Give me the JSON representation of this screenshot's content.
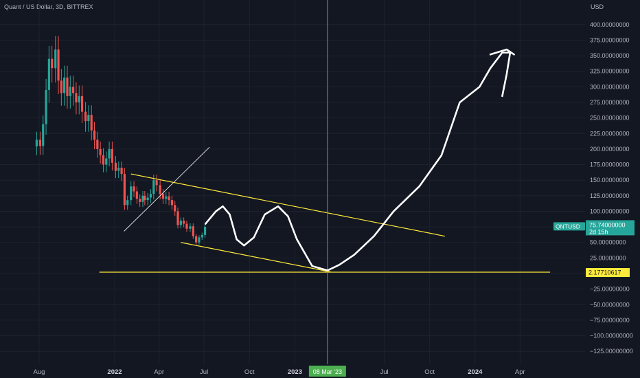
{
  "header": {
    "title": "Quant / US Dollar, 3D, BITTREX"
  },
  "axis": {
    "currency": "USD"
  },
  "price_label": {
    "symbol": "QNTUSD",
    "price": "75.74000000",
    "countdown": "2d 15h",
    "color": "#26a69a"
  },
  "level_label": {
    "value": "2.17710617",
    "color": "#ffeb3b"
  },
  "crosshair_label": {
    "text": "08 Mar '23",
    "color": "#4caf50"
  },
  "colors": {
    "up": "#26a69a",
    "down": "#ef5350",
    "trendline": "#ffeb3b",
    "drawing": "#ffffff",
    "crosshair": "#4caf50"
  },
  "chart_data": {
    "type": "candlestick",
    "symbol": "QNTUSD",
    "interval": "3D",
    "y_ticks": [
      "400.00000000",
      "375.00000000",
      "350.00000000",
      "325.00000000",
      "300.00000000",
      "275.00000000",
      "250.00000000",
      "225.00000000",
      "200.00000000",
      "175.00000000",
      "150.00000000",
      "125.00000000",
      "100.00000000",
      "75.00000000",
      "50.00000000",
      "25.00000000",
      "0.00000000",
      "−25.00000000",
      "−50.00000000",
      "−75.00000000",
      "−100.00000000",
      "−125.00000000"
    ],
    "y_tick_values": [
      400,
      375,
      350,
      325,
      300,
      275,
      250,
      225,
      200,
      175,
      150,
      125,
      100,
      75,
      50,
      25,
      0,
      -25,
      -50,
      -75,
      -100,
      -125
    ],
    "x_ticks": [
      {
        "label": "Aug",
        "date": "2021-08-01",
        "bold": false
      },
      {
        "label": "2022",
        "date": "2022-01-01",
        "bold": true
      },
      {
        "label": "Apr",
        "date": "2022-04-01",
        "bold": false
      },
      {
        "label": "Jul",
        "date": "2022-07-01",
        "bold": false
      },
      {
        "label": "Oct",
        "date": "2022-10-01",
        "bold": false
      },
      {
        "label": "2023",
        "date": "2023-01-01",
        "bold": true
      },
      {
        "label": "Jul",
        "date": "2023-07-01",
        "bold": false
      },
      {
        "label": "Oct",
        "date": "2023-10-01",
        "bold": false
      },
      {
        "label": "2024",
        "date": "2024-01-01",
        "bold": true
      },
      {
        "label": "Apr",
        "date": "2024-04-01",
        "bold": false
      }
    ],
    "candles_close": [
      {
        "date": "2021-07-27",
        "close": 215
      },
      {
        "date": "2021-08-03",
        "close": 205
      },
      {
        "date": "2021-08-09",
        "close": 240
      },
      {
        "date": "2021-08-15",
        "close": 295
      },
      {
        "date": "2021-08-21",
        "close": 345
      },
      {
        "date": "2021-08-27",
        "close": 330
      },
      {
        "date": "2021-09-03",
        "close": 360
      },
      {
        "date": "2021-09-09",
        "close": 310
      },
      {
        "date": "2021-09-15",
        "close": 290
      },
      {
        "date": "2021-09-21",
        "close": 315
      },
      {
        "date": "2021-09-27",
        "close": 285
      },
      {
        "date": "2021-10-03",
        "close": 300
      },
      {
        "date": "2021-10-09",
        "close": 290
      },
      {
        "date": "2021-10-15",
        "close": 275
      },
      {
        "date": "2021-10-21",
        "close": 285
      },
      {
        "date": "2021-10-27",
        "close": 260
      },
      {
        "date": "2021-11-03",
        "close": 245
      },
      {
        "date": "2021-11-09",
        "close": 255
      },
      {
        "date": "2021-11-15",
        "close": 230
      },
      {
        "date": "2021-11-21",
        "close": 215
      },
      {
        "date": "2021-11-27",
        "close": 200
      },
      {
        "date": "2021-12-03",
        "close": 190
      },
      {
        "date": "2021-12-09",
        "close": 175
      },
      {
        "date": "2021-12-15",
        "close": 185
      },
      {
        "date": "2021-12-21",
        "close": 200
      },
      {
        "date": "2021-12-27",
        "close": 178
      },
      {
        "date": "2022-01-03",
        "close": 165
      },
      {
        "date": "2022-01-09",
        "close": 170
      },
      {
        "date": "2022-01-15",
        "close": 160
      },
      {
        "date": "2022-01-21",
        "close": 110
      },
      {
        "date": "2022-01-27",
        "close": 118
      },
      {
        "date": "2022-02-03",
        "close": 140
      },
      {
        "date": "2022-02-09",
        "close": 132
      },
      {
        "date": "2022-02-15",
        "close": 120
      },
      {
        "date": "2022-02-21",
        "close": 115
      },
      {
        "date": "2022-02-27",
        "close": 125
      },
      {
        "date": "2022-03-03",
        "close": 118
      },
      {
        "date": "2022-03-09",
        "close": 122
      },
      {
        "date": "2022-03-15",
        "close": 128
      },
      {
        "date": "2022-03-21",
        "close": 150
      },
      {
        "date": "2022-03-27",
        "close": 142
      },
      {
        "date": "2022-04-03",
        "close": 128
      },
      {
        "date": "2022-04-09",
        "close": 120
      },
      {
        "date": "2022-04-15",
        "close": 124
      },
      {
        "date": "2022-04-21",
        "close": 118
      },
      {
        "date": "2022-04-27",
        "close": 110
      },
      {
        "date": "2022-05-03",
        "close": 100
      },
      {
        "date": "2022-05-09",
        "close": 78
      },
      {
        "date": "2022-05-15",
        "close": 85
      },
      {
        "date": "2022-05-21",
        "close": 80
      },
      {
        "date": "2022-05-27",
        "close": 72
      },
      {
        "date": "2022-06-03",
        "close": 76
      },
      {
        "date": "2022-06-09",
        "close": 60
      },
      {
        "date": "2022-06-15",
        "close": 50
      },
      {
        "date": "2022-06-21",
        "close": 58
      },
      {
        "date": "2022-06-27",
        "close": 62
      },
      {
        "date": "2022-07-03",
        "close": 75
      }
    ],
    "trendlines": [
      {
        "from": {
          "date": "2022-02-03",
          "price": 160
        },
        "to": {
          "date": "2023-11-01",
          "price": 60
        }
      },
      {
        "from": {
          "date": "2022-05-15",
          "price": 50
        },
        "to": {
          "date": "2023-03-15",
          "price": 2.5
        }
      },
      {
        "from": {
          "date": "2021-12-01",
          "price": 2.17710617
        },
        "to": {
          "date": "2024-06-01",
          "price": 2.17710617
        }
      }
    ],
    "guide_line": {
      "from": {
        "date": "2022-01-20",
        "price": 68
      },
      "to": {
        "date": "2022-07-12",
        "price": 203
      }
    },
    "vertical_line_date": "2023-03-08"
  }
}
